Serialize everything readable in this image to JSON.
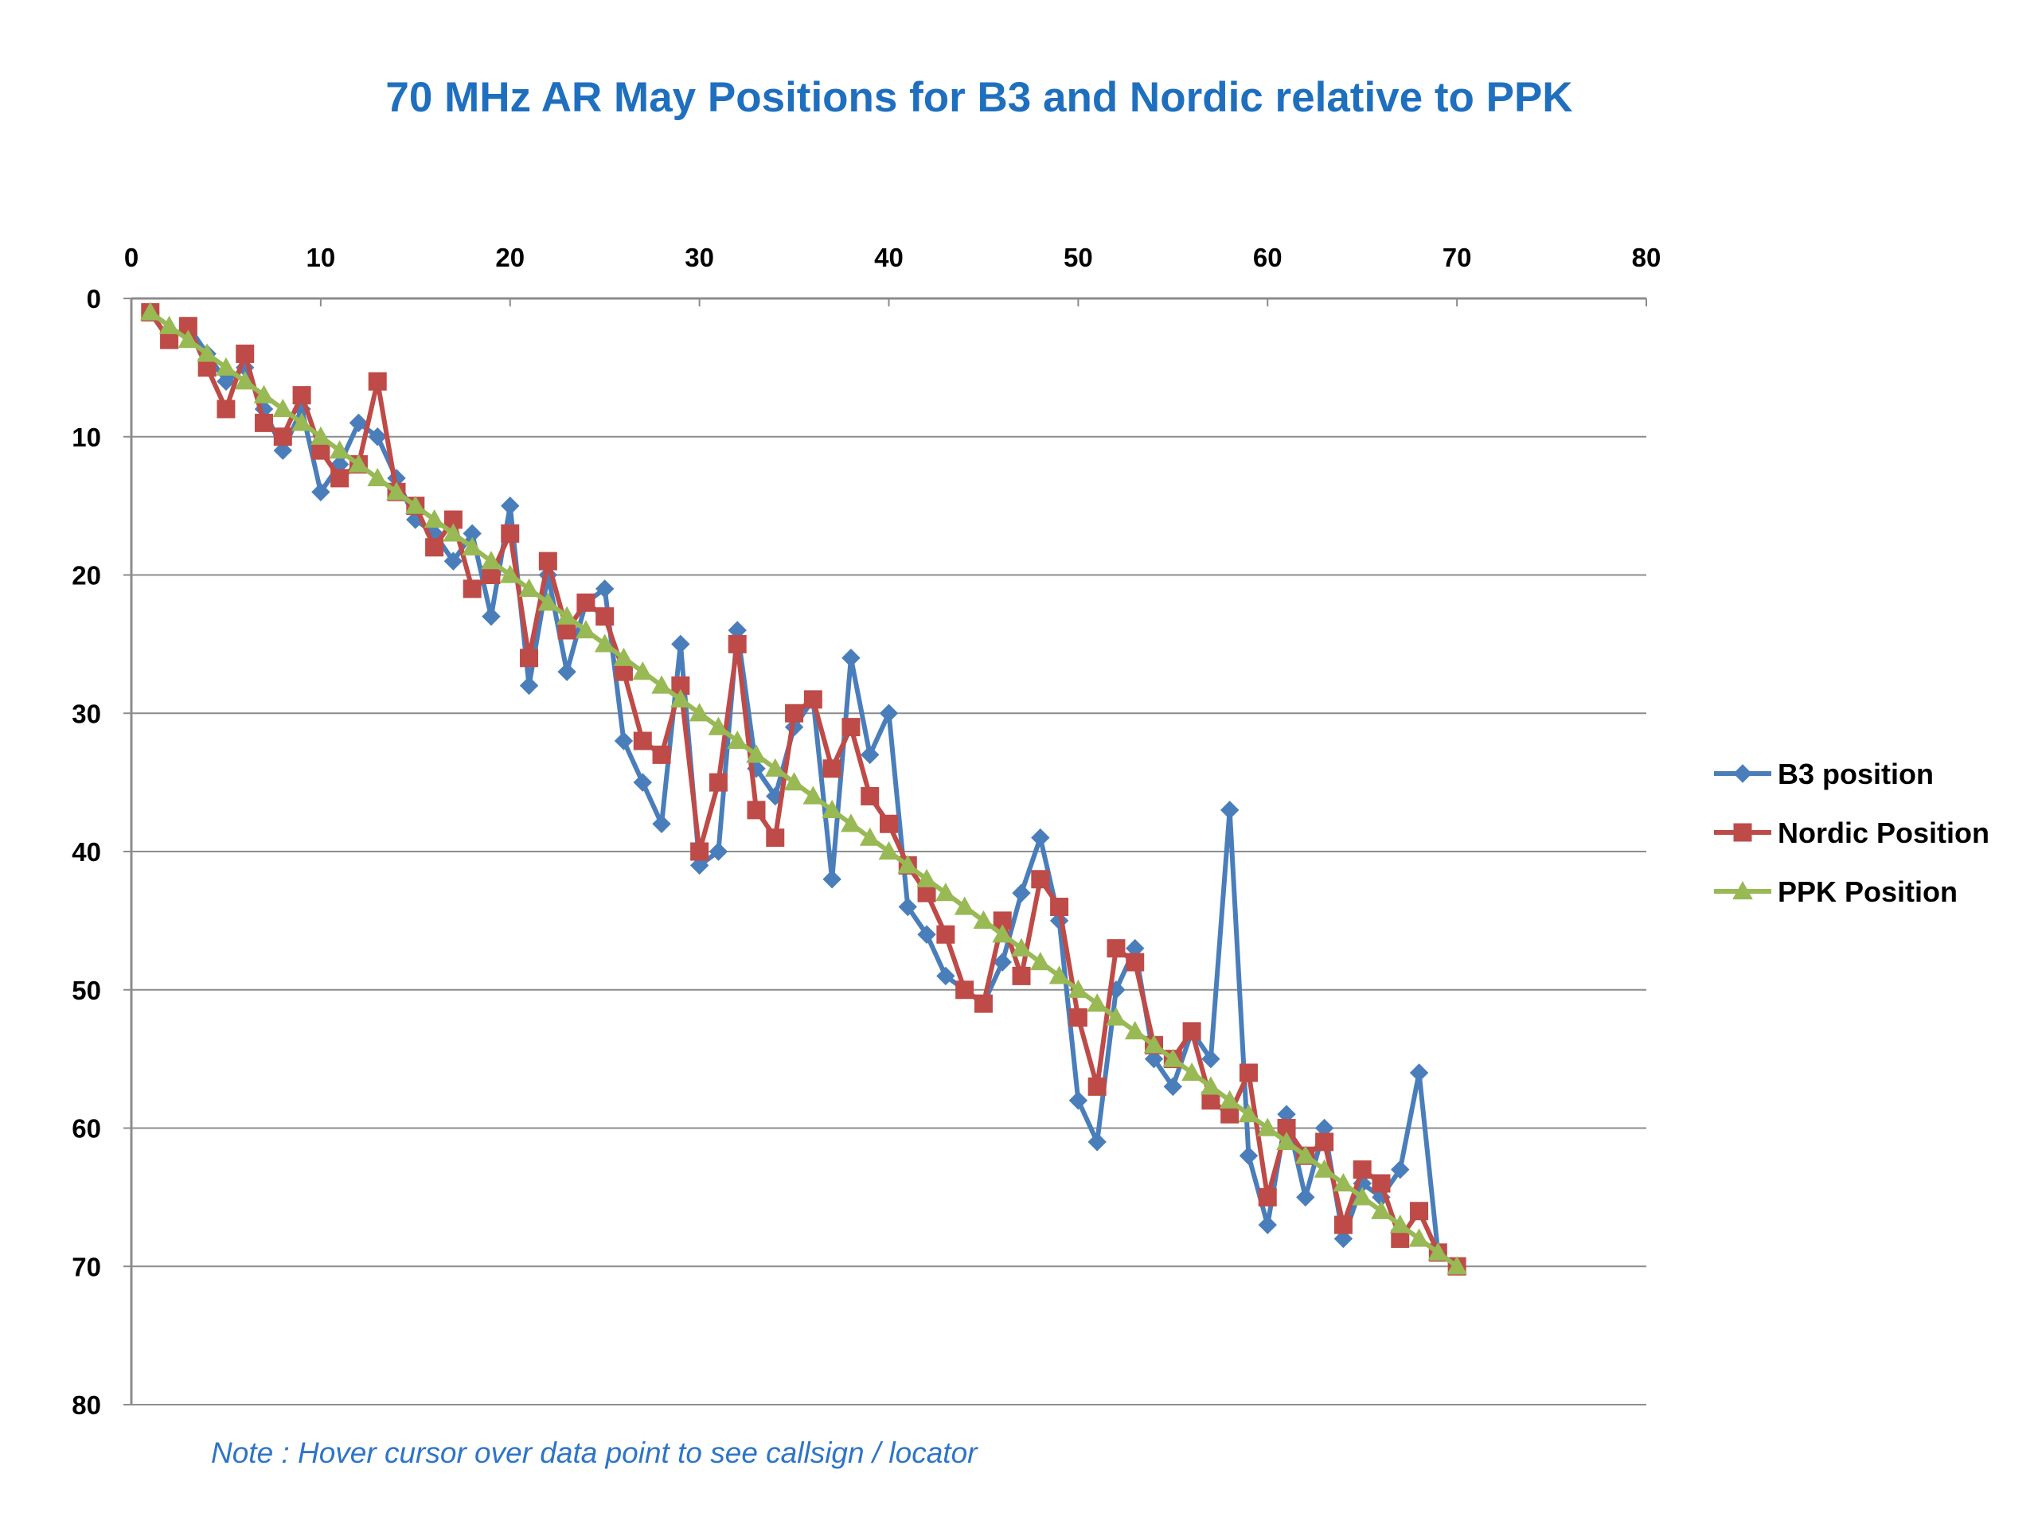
{
  "chart_data": {
    "type": "line",
    "title": "70 MHz AR May Positions for B3 and Nordic relative to PPK",
    "xlabel": "",
    "ylabel": "",
    "xlim": [
      0,
      80
    ],
    "ylim": [
      0,
      80
    ],
    "x_axis_position": "top",
    "y_reversed": true,
    "x_ticks": [
      "0",
      "10",
      "20",
      "30",
      "40",
      "50",
      "60",
      "70",
      "80"
    ],
    "y_ticks": [
      "0",
      "10",
      "20",
      "30",
      "40",
      "50",
      "60",
      "70",
      "80"
    ],
    "grid": "horizontal",
    "legend": "right",
    "x": [
      1,
      2,
      3,
      4,
      5,
      6,
      7,
      8,
      9,
      10,
      11,
      12,
      13,
      14,
      15,
      16,
      17,
      18,
      19,
      20,
      21,
      22,
      23,
      24,
      25,
      26,
      27,
      28,
      29,
      30,
      31,
      32,
      33,
      34,
      35,
      36,
      37,
      38,
      39,
      40,
      41,
      42,
      43,
      44,
      45,
      46,
      47,
      48,
      49,
      50,
      51,
      52,
      53,
      54,
      55,
      56,
      57,
      58,
      59,
      60,
      61,
      62,
      63,
      64,
      65,
      66,
      67,
      68,
      69,
      70
    ],
    "series": [
      {
        "name": "B3 position",
        "color": "#4A7EBB",
        "marker": "diamond",
        "values": [
          1,
          3,
          2,
          4,
          6,
          5,
          8,
          11,
          8,
          14,
          12,
          9,
          10,
          13,
          16,
          17,
          19,
          17,
          23,
          15,
          28,
          20,
          27,
          22,
          21,
          32,
          35,
          38,
          25,
          41,
          40,
          24,
          34,
          36,
          31,
          29,
          42,
          26,
          33,
          30,
          44,
          46,
          49,
          50,
          51,
          48,
          43,
          39,
          45,
          58,
          61,
          50,
          47,
          55,
          57,
          53,
          55,
          37,
          62,
          67,
          59,
          65,
          60,
          68,
          64,
          65,
          63,
          56,
          69,
          70
        ]
      },
      {
        "name": "Nordic Position",
        "color": "#BE4B48",
        "marker": "square",
        "values": [
          1,
          3,
          2,
          5,
          8,
          4,
          9,
          10,
          7,
          11,
          13,
          12,
          6,
          14,
          15,
          18,
          16,
          21,
          20,
          17,
          26,
          19,
          24,
          22,
          23,
          27,
          32,
          33,
          28,
          40,
          35,
          25,
          37,
          39,
          30,
          29,
          34,
          31,
          36,
          38,
          41,
          43,
          46,
          50,
          51,
          45,
          49,
          42,
          44,
          52,
          57,
          47,
          48,
          54,
          55,
          53,
          58,
          59,
          56,
          65,
          60,
          62,
          61,
          67,
          63,
          64,
          68,
          66,
          69,
          70
        ]
      },
      {
        "name": "PPK Position",
        "color": "#98B954",
        "marker": "triangle",
        "values": [
          1,
          2,
          3,
          4,
          5,
          6,
          7,
          8,
          9,
          10,
          11,
          12,
          13,
          14,
          15,
          16,
          17,
          18,
          19,
          20,
          21,
          22,
          23,
          24,
          25,
          26,
          27,
          28,
          29,
          30,
          31,
          32,
          33,
          34,
          35,
          36,
          37,
          38,
          39,
          40,
          41,
          42,
          43,
          44,
          45,
          46,
          47,
          48,
          49,
          50,
          51,
          52,
          53,
          54,
          55,
          56,
          57,
          58,
          59,
          60,
          61,
          62,
          63,
          64,
          65,
          66,
          67,
          68,
          69,
          70
        ]
      }
    ]
  },
  "note": "Note : Hover cursor over data point to see callsign / locator"
}
